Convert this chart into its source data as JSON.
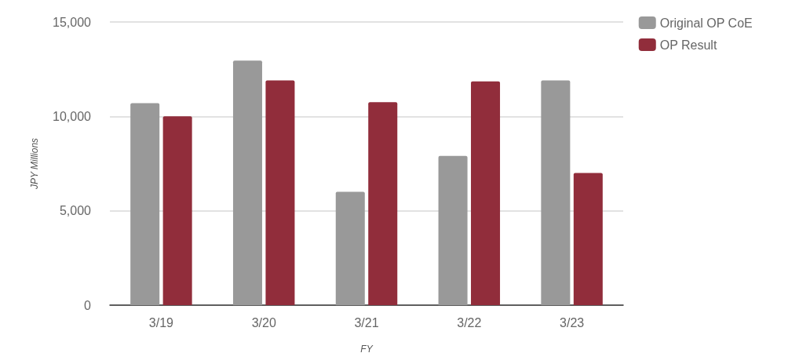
{
  "chart_data": {
    "type": "bar",
    "xlabel": "FY",
    "ylabel": "JPY Millions",
    "categories": [
      "3/19",
      "3/20",
      "3/21",
      "3/22",
      "3/23"
    ],
    "series": [
      {
        "name": "Original OP CoE",
        "color": "#999999",
        "values": [
          10700,
          12950,
          6000,
          7900,
          11900
        ]
      },
      {
        "name": "OP Result",
        "color": "#912d3b",
        "values": [
          10000,
          11900,
          10750,
          11850,
          7000
        ]
      }
    ],
    "ylim": [
      0,
      15000
    ],
    "yticks": [
      {
        "value": 0,
        "label": "0"
      },
      {
        "value": 5000,
        "label": "5,000"
      },
      {
        "value": 10000,
        "label": "10,000"
      },
      {
        "value": 15000,
        "label": "15,000"
      }
    ],
    "grid": "y",
    "legend": "top right"
  }
}
